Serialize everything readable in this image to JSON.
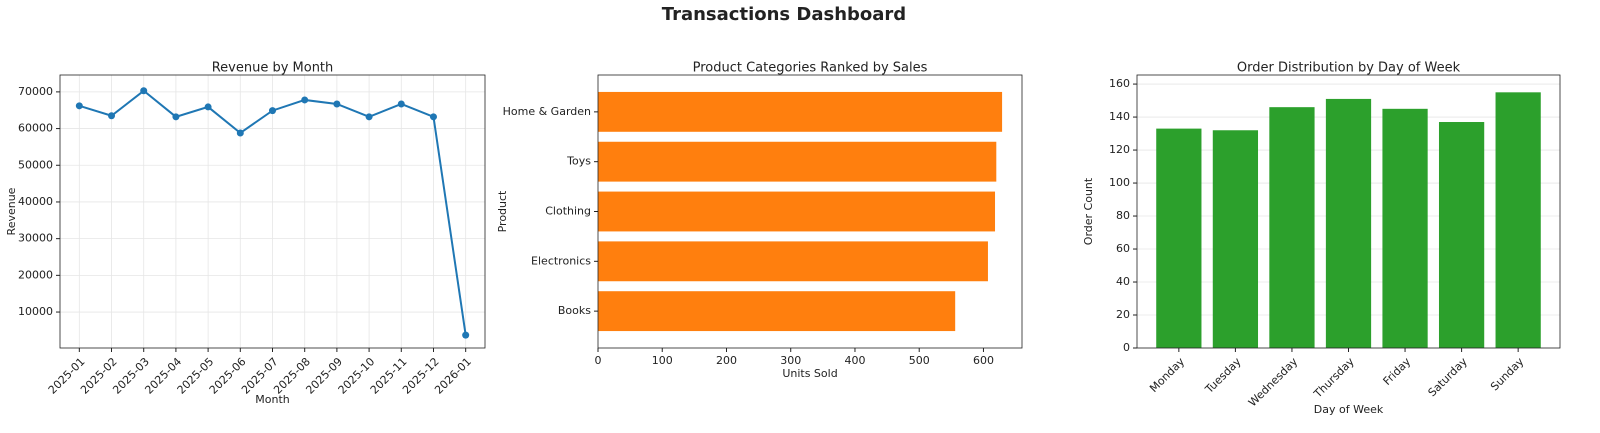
{
  "title": "Transactions Dashboard",
  "chart_data": [
    {
      "type": "line",
      "title": "Revenue by Month",
      "x_label": "Month",
      "y_label": "Revenue",
      "categories": [
        "2025-01",
        "2025-02",
        "2025-03",
        "2025-04",
        "2025-05",
        "2025-06",
        "2025-07",
        "2025-08",
        "2025-09",
        "2025-10",
        "2025-11",
        "2025-12",
        "2026-01"
      ],
      "values": [
        66200,
        63500,
        70300,
        63200,
        65900,
        58800,
        64900,
        67800,
        66700,
        63200,
        66700,
        63200,
        3700
      ],
      "color": "#1f77b4",
      "ylim": [
        200,
        74600
      ],
      "yticks": [
        10000,
        20000,
        30000,
        40000,
        50000,
        60000,
        70000
      ],
      "grid": true
    },
    {
      "type": "barh",
      "title": "Product Categories Ranked by Sales",
      "x_label": "Units Sold",
      "y_label": "Product",
      "categories": [
        "Home & Garden",
        "Toys",
        "Clothing",
        "Electronics",
        "Books"
      ],
      "values": [
        629,
        620,
        618,
        607,
        556
      ],
      "color": "#ff7f0e",
      "xlim": [
        0,
        660
      ],
      "xticks": [
        0,
        100,
        200,
        300,
        400,
        500,
        600
      ],
      "grid": false
    },
    {
      "type": "bar",
      "title": "Order Distribution by Day of Week",
      "x_label": "Day of Week",
      "y_label": "Order Count",
      "categories": [
        "Monday",
        "Tuesday",
        "Wednesday",
        "Thursday",
        "Friday",
        "Saturday",
        "Sunday"
      ],
      "values": [
        133,
        132,
        146,
        151,
        145,
        137,
        155
      ],
      "color": "#2ca02c",
      "ylim": [
        0,
        165.5
      ],
      "yticks": [
        0,
        20,
        40,
        60,
        80,
        100,
        120,
        140,
        160
      ],
      "grid": true
    }
  ]
}
